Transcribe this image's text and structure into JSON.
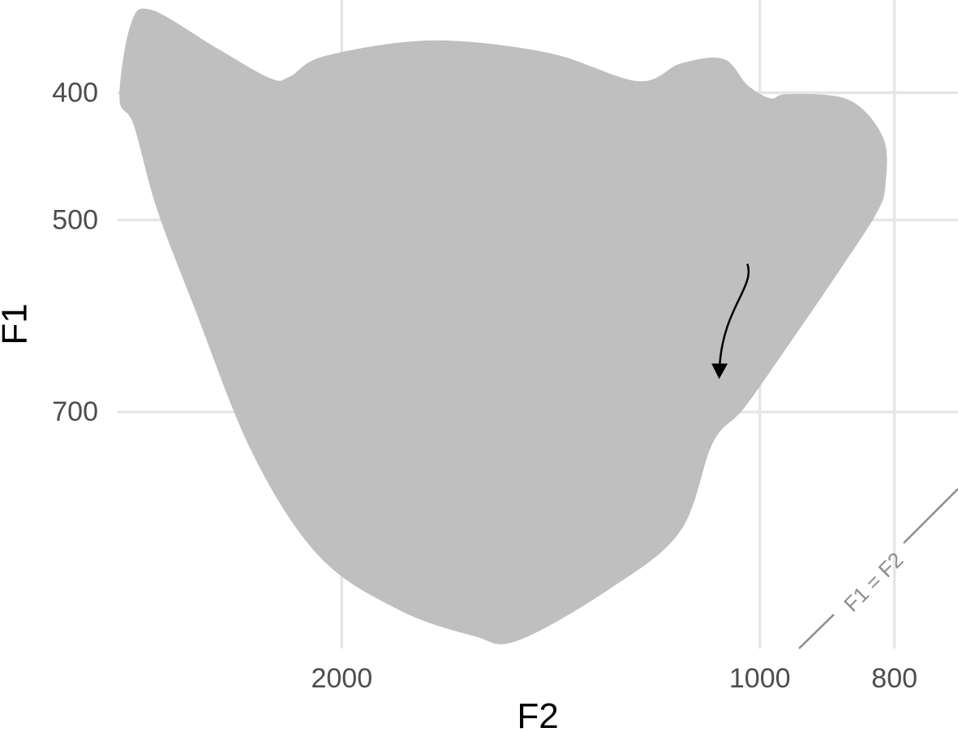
{
  "chart_data": {
    "type": "area",
    "title": "",
    "xlabel": "F2",
    "ylabel": "F1",
    "x_scale": "reversed log",
    "y_scale": "reversed log",
    "x_ticks": [
      2000,
      1000,
      800
    ],
    "x_tick_labels": [
      "2000",
      "1000",
      "800"
    ],
    "y_ticks": [
      400,
      500,
      700
    ],
    "y_tick_labels": [
      "400",
      "500",
      "700"
    ],
    "xlim": [
      2900,
      720
    ],
    "ylim": [
      340,
      1060
    ],
    "grid": true,
    "legend": "none",
    "colors": {
      "region_fill": "#bfbfbf",
      "grid": "#e6e6e6",
      "diagonal": "#8c8c8c",
      "arrow": "#000000"
    },
    "region_outline": {
      "description": "vowel space region",
      "points": [
        [
          2741,
          346
        ],
        [
          2460,
          370
        ],
        [
          2252,
          390
        ],
        [
          2181,
          389
        ],
        [
          2055,
          375
        ],
        [
          1721,
          365
        ],
        [
          1420,
          373
        ],
        [
          1224,
          392
        ],
        [
          1140,
          380
        ],
        [
          1062,
          377
        ],
        [
          1020,
          395
        ],
        [
          982,
          404
        ],
        [
          955,
          401
        ],
        [
          863,
          405
        ],
        [
          815,
          433
        ],
        [
          812,
          470
        ],
        [
          824,
          494
        ],
        [
          876,
          546
        ],
        [
          947,
          616
        ],
        [
          1026,
          695
        ],
        [
          1081,
          739
        ],
        [
          1141,
          863
        ],
        [
          1283,
          955
        ],
        [
          1496,
          1046
        ],
        [
          1607,
          1037
        ],
        [
          1818,
          991
        ],
        [
          2076,
          902
        ],
        [
          2320,
          752
        ],
        [
          2560,
          579
        ],
        [
          2718,
          490
        ],
        [
          2824,
          423
        ],
        [
          2891,
          404
        ],
        [
          2838,
          355
        ]
      ]
    },
    "arrow": {
      "from": [
        1021,
        540
      ],
      "to": [
        1069,
        645
      ]
    },
    "reference_line": {
      "label": "F1 = F2"
    }
  }
}
